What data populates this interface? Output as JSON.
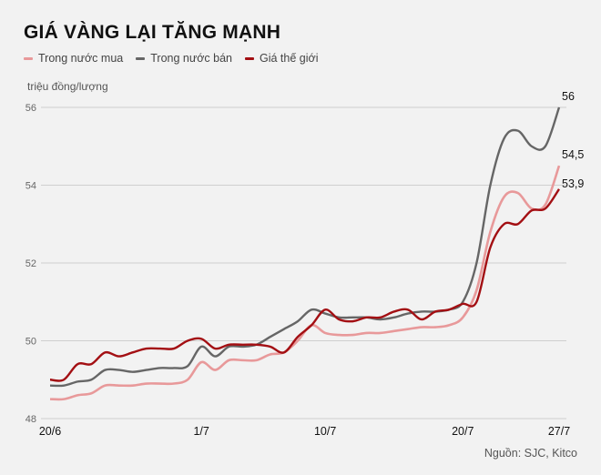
{
  "chart_data": {
    "type": "line",
    "title": "GIÁ VÀNG LẠI TĂNG MẠNH",
    "ylabel": "triệu đồng/lượng",
    "source": "Nguồn: SJC, Kitco",
    "ylim": [
      48,
      56
    ],
    "yticks": [
      "48",
      "50",
      "52",
      "54",
      "56"
    ],
    "ytick_values": [
      48,
      50,
      52,
      54,
      56
    ],
    "xticks": [
      {
        "label": "20/6",
        "day": 0
      },
      {
        "label": "1/7",
        "day": 11
      },
      {
        "label": "10/7",
        "day": 20
      },
      {
        "label": "20/7",
        "day": 30
      },
      {
        "label": "27/7",
        "day": 37
      }
    ],
    "x_days_from": "20/6",
    "grid": true,
    "legend_position": "top-left",
    "series": [
      {
        "name": "Trong nước mua",
        "color": "#e8999a",
        "end_label": "54,5",
        "values": [
          48.5,
          48.5,
          48.6,
          48.65,
          48.85,
          48.85,
          48.85,
          48.9,
          48.9,
          48.9,
          49.0,
          49.45,
          49.25,
          49.5,
          49.5,
          49.5,
          49.65,
          49.7,
          50.0,
          50.4,
          50.2,
          50.15,
          50.15,
          50.2,
          50.2,
          50.25,
          50.3,
          50.35,
          50.35,
          50.4,
          50.6,
          51.3,
          52.8,
          53.7,
          53.8,
          53.4,
          53.5,
          54.5
        ]
      },
      {
        "name": "Trong nước bán",
        "color": "#666666",
        "end_label": "56",
        "values": [
          48.85,
          48.85,
          48.95,
          49.0,
          49.25,
          49.25,
          49.2,
          49.25,
          49.3,
          49.3,
          49.35,
          49.85,
          49.6,
          49.85,
          49.85,
          49.9,
          50.1,
          50.3,
          50.5,
          50.8,
          50.7,
          50.6,
          50.6,
          50.6,
          50.55,
          50.6,
          50.7,
          50.75,
          50.75,
          50.8,
          51.0,
          52.0,
          54.0,
          55.2,
          55.4,
          55.0,
          55.0,
          56.0
        ]
      },
      {
        "name": "Giá thế giới",
        "color": "#a30f13",
        "end_label": "53,9",
        "values": [
          49.0,
          49.0,
          49.4,
          49.4,
          49.7,
          49.6,
          49.7,
          49.8,
          49.8,
          49.8,
          50.0,
          50.05,
          49.8,
          49.9,
          49.9,
          49.9,
          49.85,
          49.7,
          50.1,
          50.4,
          50.8,
          50.55,
          50.5,
          50.6,
          50.6,
          50.75,
          50.8,
          50.55,
          50.75,
          50.8,
          50.95,
          51.0,
          52.4,
          53.0,
          53.0,
          53.35,
          53.4,
          53.9
        ]
      }
    ]
  }
}
